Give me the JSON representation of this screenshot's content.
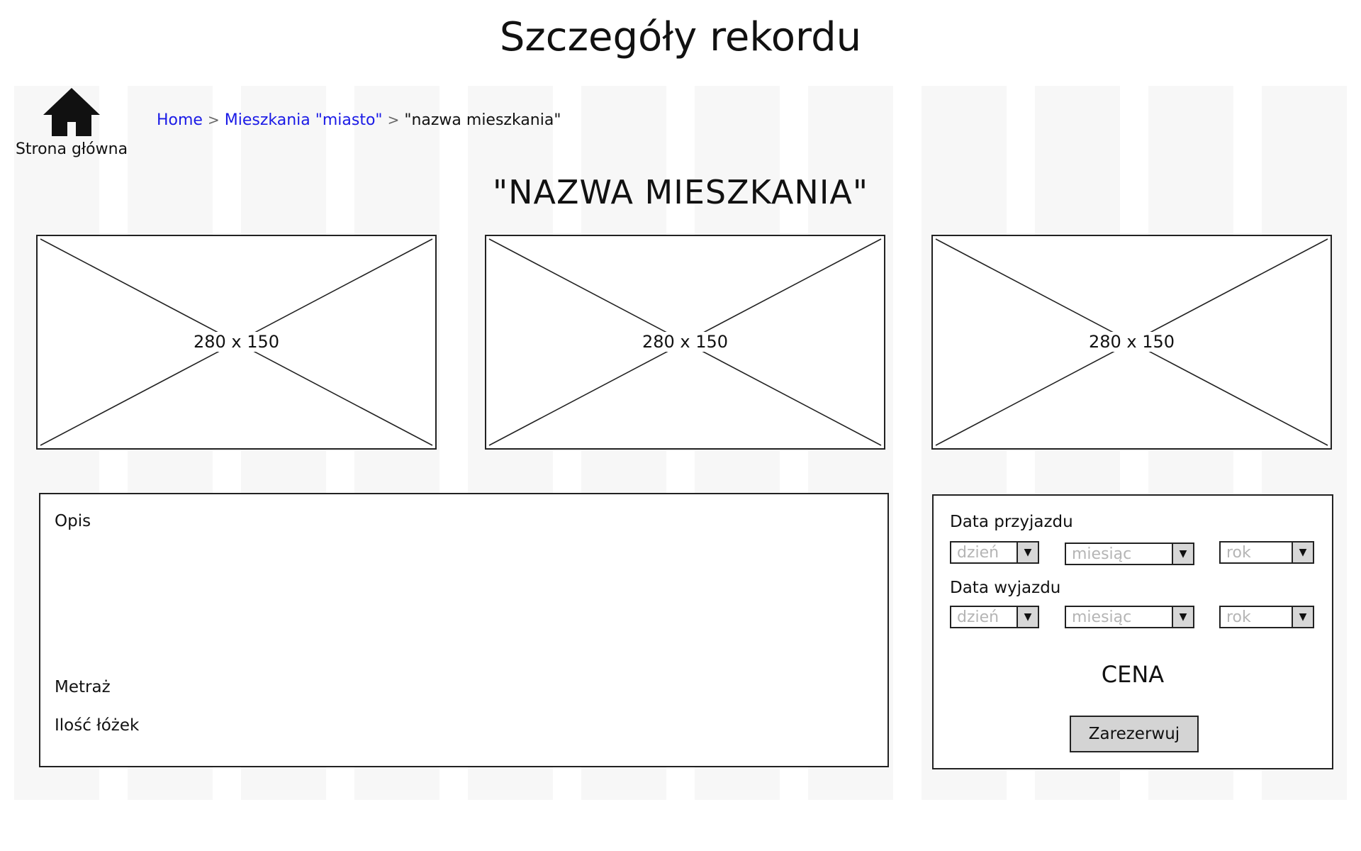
{
  "page": {
    "title": "Szczegóły rekordu"
  },
  "nav": {
    "home_label": "Strona główna",
    "home_icon": "home-icon"
  },
  "breadcrumb": {
    "items": [
      {
        "label": "Home",
        "link": true
      },
      {
        "label": "Mieszkania \"miasto\"",
        "link": true
      },
      {
        "label": "\"nazwa mieszkania\"",
        "link": false
      }
    ],
    "separator": ">"
  },
  "apartment": {
    "name": "\"NAZWA MIESZKANIA\""
  },
  "images": [
    {
      "label": "280 x 150"
    },
    {
      "label": "280 x 150"
    },
    {
      "label": "280 x 150"
    }
  ],
  "details": {
    "description_label": "Opis",
    "area_label": "Metraż",
    "beds_label": "Ilość łóżek"
  },
  "booking": {
    "arrival_label": "Data przyjazdu",
    "departure_label": "Data wyjazdu",
    "arrival_selects": {
      "day": "dzień",
      "month": "miesiąc",
      "year": "rok"
    },
    "departure_selects": {
      "day": "dzień",
      "month": "miesiąc",
      "year": "rok"
    },
    "price_label": "CENA",
    "reserve_label": "Zarezerwuj",
    "dropdown_icon": "▼"
  },
  "colors": {
    "link": "#1a1ae6",
    "button_bg": "#d4d4d4",
    "placeholder_text": "#b5b5b5"
  }
}
